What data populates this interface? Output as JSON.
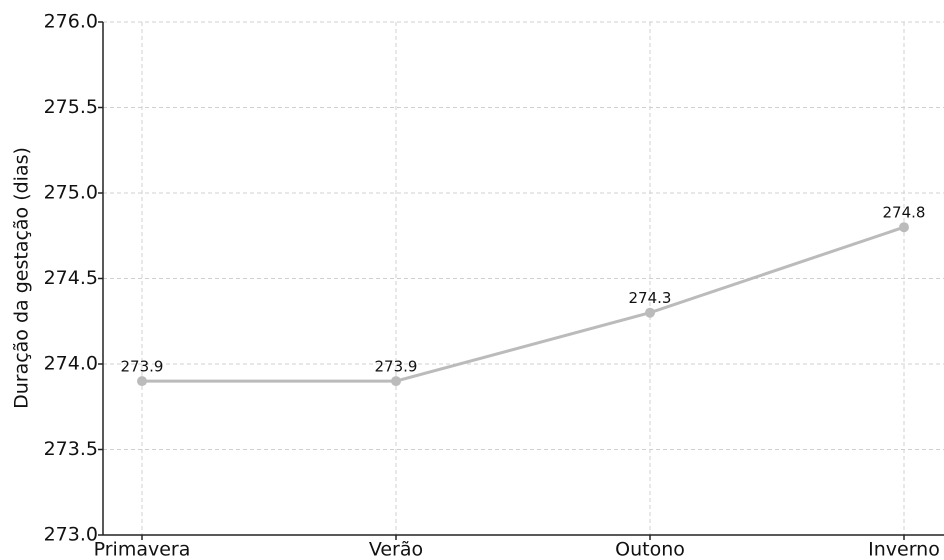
{
  "chart_data": {
    "type": "line",
    "y_label": "Duração da gestação (dias)",
    "categories": [
      "Primavera",
      "Verão",
      "Outono",
      "Inverno"
    ],
    "values": [
      273.9,
      273.9,
      274.3,
      274.8
    ],
    "color": "#bbbbbb",
    "ylim": [
      273.0,
      276.0
    ],
    "yticks": [
      {
        "value": 273,
        "label": "273.0"
      },
      273.5,
      {
        "value": 274,
        "label": "274.0"
      },
      274.5,
      {
        "value": 275,
        "label": "275.0"
      },
      275.5,
      {
        "value": 276,
        "label": "276.0"
      }
    ],
    "grid": true
  }
}
